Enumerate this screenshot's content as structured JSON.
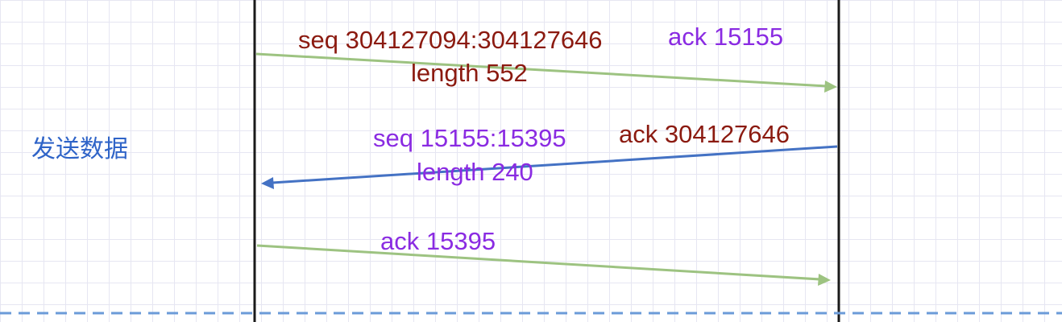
{
  "colors": {
    "seq_ack_dark_red": "#8b1a10",
    "ack_purple": "#8a2be2",
    "section_label_blue": "#2f64c8",
    "outgoing_arrow_green": "#9dc381",
    "incoming_arrow_blue": "#4472c4",
    "lifeline_black": "#1a1a1a",
    "dashed_separator_blue": "#6b9bd8",
    "grid_lavender": "#e6e6f2"
  },
  "section": {
    "label": "发送数据"
  },
  "messages": [
    {
      "direction": "client-to-server",
      "seq_label": "seq 304127094:304127646",
      "ack_label": "ack 15155",
      "length_label": "length 552"
    },
    {
      "direction": "server-to-client",
      "seq_label": "seq 15155:15395",
      "ack_label": "ack 304127646",
      "length_label": "length 240"
    },
    {
      "direction": "client-to-server",
      "ack_label": "ack 15395"
    }
  ]
}
